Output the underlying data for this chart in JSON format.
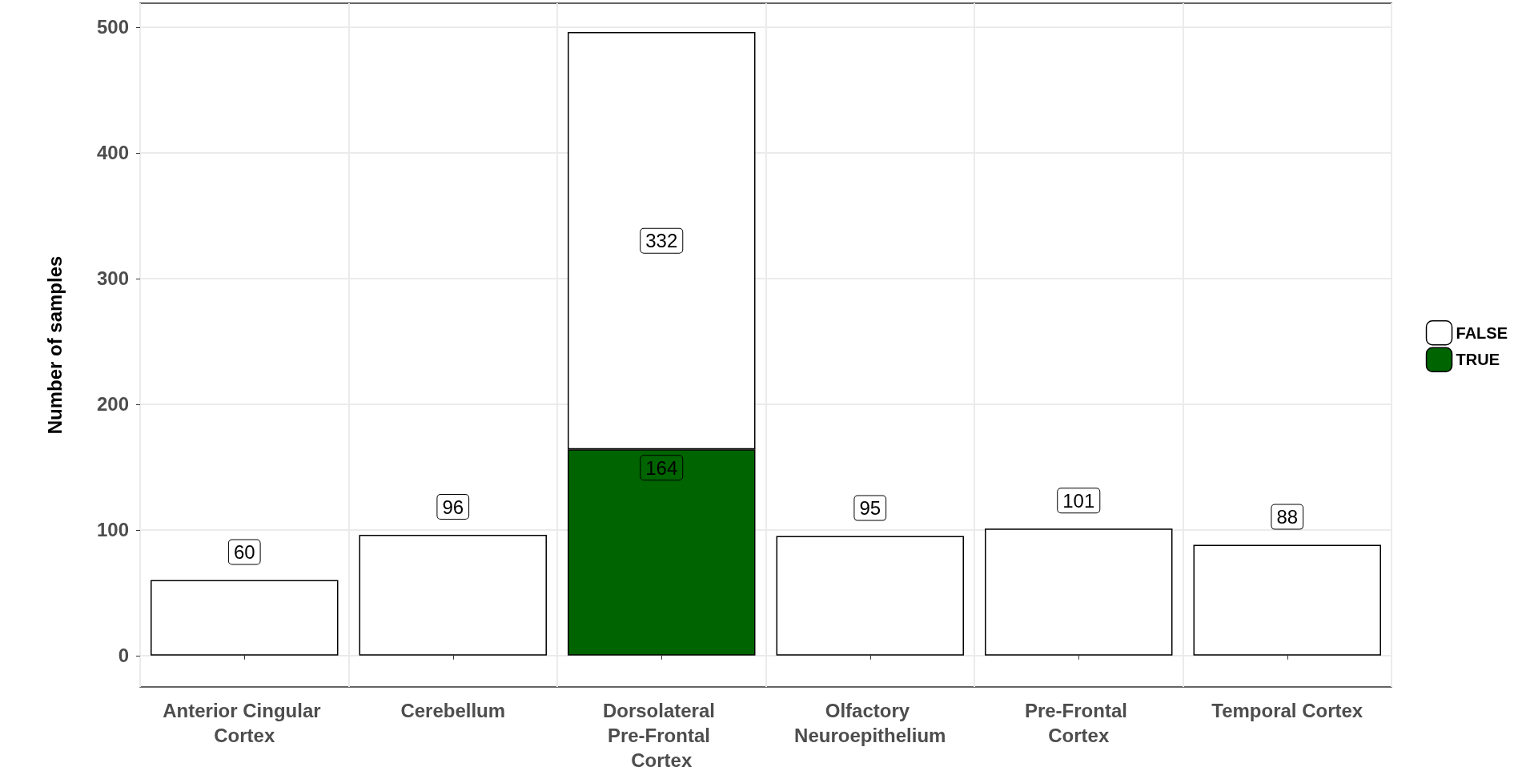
{
  "chart_data": {
    "type": "bar",
    "ylabel": "Number of samples",
    "categories": [
      "Anterior Cingular Cortex",
      "Cerebellum",
      "Dorsolateral Pre-Frontal Cortex",
      "Olfactory Neuroepithelium",
      "Pre-Frontal Cortex",
      "Temporal Cortex"
    ],
    "series": [
      {
        "name": "TRUE",
        "color": "#006400",
        "values": [
          null,
          null,
          164,
          null,
          null,
          null
        ]
      },
      {
        "name": "FALSE",
        "color": "#ffffff",
        "values": [
          60,
          96,
          332,
          95,
          101,
          88
        ]
      }
    ],
    "stacked": true,
    "data_labels": true,
    "ylim": [
      -25,
      519
    ],
    "yticks": [
      0,
      100,
      200,
      300,
      400,
      500
    ],
    "grid": true,
    "legend": "right"
  }
}
